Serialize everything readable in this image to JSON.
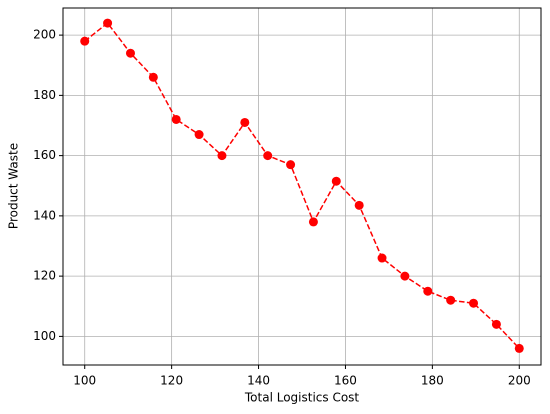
{
  "chart_data": {
    "type": "line",
    "xlabel": "Total Logistics Cost",
    "ylabel": "Product Waste",
    "x": [
      100,
      105.26,
      110.53,
      115.79,
      121.05,
      126.32,
      131.58,
      136.84,
      142.11,
      147.37,
      152.63,
      157.89,
      163.16,
      168.42,
      173.68,
      178.95,
      184.21,
      189.47,
      194.74,
      200
    ],
    "series": [
      {
        "name": "Product Waste",
        "color": "#ff0000",
        "values": [
          198,
          204,
          194,
          186,
          172,
          167,
          160,
          171,
          160,
          157,
          138,
          151.5,
          143.5,
          126,
          120,
          115,
          112,
          111,
          104,
          96
        ]
      }
    ],
    "xlim": [
      95,
      205
    ],
    "ylim": [
      90.5,
      209
    ],
    "xticks": [
      100,
      120,
      140,
      160,
      180,
      200
    ],
    "yticks": [
      100,
      120,
      140,
      160,
      180,
      200
    ],
    "grid": true
  }
}
